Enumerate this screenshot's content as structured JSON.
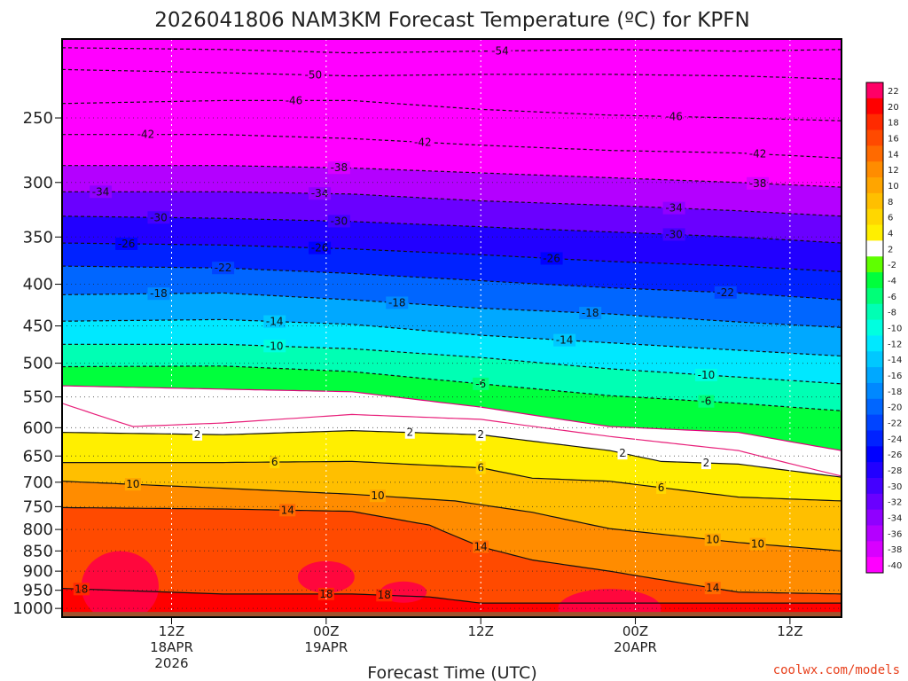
{
  "chart_data": {
    "type": "heatmap",
    "title": "2026041806 NAM3KM Forecast Temperature (ºC) for KPFN",
    "xlabel": "Forecast Time (UTC)",
    "ylabel": "",
    "y_units": "hPa",
    "y_scale": "log-pressure",
    "ylim": [
      1025,
      200
    ],
    "x_range_hours": [
      -2.5,
      58
    ],
    "x_ticks": [
      {
        "hour": 6,
        "lines": [
          "12Z",
          "18APR",
          "2026"
        ]
      },
      {
        "hour": 18,
        "lines": [
          "00Z",
          "19APR"
        ]
      },
      {
        "hour": 30,
        "lines": [
          "12Z"
        ]
      },
      {
        "hour": 42,
        "lines": [
          "00Z",
          "20APR"
        ]
      },
      {
        "hour": 54,
        "lines": [
          "12Z"
        ]
      }
    ],
    "y_ticks": [
      250,
      300,
      350,
      400,
      450,
      500,
      550,
      600,
      650,
      700,
      750,
      800,
      850,
      900,
      950,
      1000
    ],
    "colorbar": {
      "labels": [
        "22",
        "20",
        "18",
        "16",
        "14",
        "12",
        "10",
        "8",
        "6",
        "4",
        "2",
        "-2",
        "-4",
        "-6",
        "-8",
        "-10",
        "-12",
        "-14",
        "-16",
        "-18",
        "-20",
        "-22",
        "-24",
        "-26",
        "-28",
        "-30",
        "-32",
        "-34",
        "-36",
        "-38",
        "-40"
      ],
      "colors": [
        "#ff0066",
        "#ff0000",
        "#ff2a00",
        "#ff4a00",
        "#ff6a00",
        "#ff8c00",
        "#ffa500",
        "#ffbf00",
        "#ffd700",
        "#ffef00",
        "#ffffff",
        "#5fff00",
        "#00ff3c",
        "#00ff78",
        "#00ffb4",
        "#00ffe0",
        "#00e8ff",
        "#00c8ff",
        "#00a8ff",
        "#0088ff",
        "#0066ff",
        "#0044ff",
        "#0022ff",
        "#0000ff",
        "#2200ff",
        "#4400ff",
        "#6a00ff",
        "#9000ff",
        "#b400ff",
        "#d800ff",
        "#ff00ff"
      ]
    },
    "isotherms": [
      {
        "temp": -54,
        "points": [
          [
            -2.5,
            205
          ],
          [
            10,
            206
          ],
          [
            20,
            208
          ],
          [
            30,
            207
          ],
          [
            40,
            206
          ],
          [
            50,
            207
          ],
          [
            58,
            206
          ]
        ],
        "labels": [
          {
            "hour": 31.5,
            "text": "-54"
          }
        ]
      },
      {
        "temp": -50,
        "points": [
          [
            -2.5,
            218
          ],
          [
            10,
            220
          ],
          [
            20,
            222
          ],
          [
            30,
            221
          ],
          [
            40,
            221
          ],
          [
            50,
            222
          ],
          [
            58,
            224
          ]
        ],
        "labels": [
          {
            "hour": 17,
            "text": "-50"
          }
        ]
      },
      {
        "temp": -46,
        "points": [
          [
            -2.5,
            240
          ],
          [
            10,
            238
          ],
          [
            20,
            238
          ],
          [
            30,
            244
          ],
          [
            40,
            248
          ],
          [
            50,
            250
          ],
          [
            58,
            252
          ]
        ],
        "labels": [
          {
            "hour": 15.5,
            "text": "-46"
          },
          {
            "hour": 45,
            "text": "-46"
          }
        ]
      },
      {
        "temp": -42,
        "points": [
          [
            -2.5,
            262
          ],
          [
            10,
            262
          ],
          [
            20,
            265
          ],
          [
            30,
            270
          ],
          [
            40,
            274
          ],
          [
            50,
            276
          ],
          [
            58,
            280
          ]
        ],
        "labels": [
          {
            "hour": 4,
            "text": "-42"
          },
          {
            "hour": 25.5,
            "text": "-42"
          },
          {
            "hour": 51.5,
            "text": "-42"
          }
        ]
      },
      {
        "temp": -38,
        "points": [
          [
            -2.5,
            286
          ],
          [
            10,
            286
          ],
          [
            20,
            288
          ],
          [
            30,
            292
          ],
          [
            40,
            296
          ],
          [
            50,
            300
          ],
          [
            58,
            304
          ]
        ],
        "labels": [
          {
            "hour": 19,
            "text": "-38"
          },
          {
            "hour": 51.5,
            "text": "-38"
          }
        ]
      },
      {
        "temp": -34,
        "points": [
          [
            -2.5,
            308
          ],
          [
            10,
            308
          ],
          [
            20,
            310
          ],
          [
            30,
            316
          ],
          [
            40,
            320
          ],
          [
            50,
            325
          ],
          [
            58,
            330
          ]
        ],
        "labels": [
          {
            "hour": 0.5,
            "text": "-34"
          },
          {
            "hour": 17.5,
            "text": "-34"
          },
          {
            "hour": 45,
            "text": "-34"
          }
        ]
      },
      {
        "temp": -30,
        "points": [
          [
            -2.5,
            330
          ],
          [
            10,
            332
          ],
          [
            20,
            335
          ],
          [
            30,
            340
          ],
          [
            40,
            345
          ],
          [
            50,
            350
          ],
          [
            58,
            356
          ]
        ],
        "labels": [
          {
            "hour": 5,
            "text": "-30"
          },
          {
            "hour": 19,
            "text": "-30"
          },
          {
            "hour": 45,
            "text": "-30"
          }
        ]
      },
      {
        "temp": -26,
        "points": [
          [
            -2.5,
            356
          ],
          [
            10,
            358
          ],
          [
            20,
            362
          ],
          [
            30,
            368
          ],
          [
            40,
            375
          ],
          [
            50,
            380
          ],
          [
            58,
            386
          ]
        ],
        "labels": [
          {
            "hour": 2.5,
            "text": "-26"
          },
          {
            "hour": 17.5,
            "text": "-26"
          },
          {
            "hour": 35.5,
            "text": "-26"
          }
        ]
      },
      {
        "temp": -22,
        "points": [
          [
            -2.5,
            380
          ],
          [
            10,
            382
          ],
          [
            20,
            388
          ],
          [
            30,
            396
          ],
          [
            40,
            404
          ],
          [
            50,
            410
          ],
          [
            58,
            418
          ]
        ],
        "labels": [
          {
            "hour": 10,
            "text": "-22"
          },
          {
            "hour": 49,
            "text": "-22"
          }
        ]
      },
      {
        "temp": -18,
        "points": [
          [
            -2.5,
            412
          ],
          [
            10,
            410
          ],
          [
            20,
            418
          ],
          [
            30,
            428
          ],
          [
            40,
            435
          ],
          [
            50,
            445
          ],
          [
            58,
            452
          ]
        ],
        "labels": [
          {
            "hour": 5,
            "text": "-18"
          },
          {
            "hour": 23.5,
            "text": "-18"
          },
          {
            "hour": 38.5,
            "text": "-18"
          }
        ]
      },
      {
        "temp": -14,
        "points": [
          [
            -2.5,
            444
          ],
          [
            10,
            442
          ],
          [
            20,
            448
          ],
          [
            30,
            462
          ],
          [
            40,
            472
          ],
          [
            50,
            482
          ],
          [
            58,
            490
          ]
        ],
        "labels": [
          {
            "hour": 14,
            "text": "-14"
          },
          {
            "hour": 36.5,
            "text": "-14"
          }
        ]
      },
      {
        "temp": -10,
        "points": [
          [
            -2.5,
            474
          ],
          [
            10,
            474
          ],
          [
            20,
            480
          ],
          [
            30,
            492
          ],
          [
            40,
            508
          ],
          [
            50,
            520
          ],
          [
            58,
            530
          ]
        ],
        "labels": [
          {
            "hour": 14,
            "text": "-10"
          },
          {
            "hour": 47.5,
            "text": "-10"
          }
        ]
      },
      {
        "temp": -6,
        "points": [
          [
            -2.5,
            505
          ],
          [
            10,
            504
          ],
          [
            20,
            512
          ],
          [
            30,
            530
          ],
          [
            40,
            548
          ],
          [
            50,
            560
          ],
          [
            58,
            572
          ]
        ],
        "labels": [
          {
            "hour": 30,
            "text": "-6"
          },
          {
            "hour": 47.5,
            "text": "-6"
          }
        ]
      },
      {
        "temp": -2,
        "points": [
          [
            -2.5,
            533
          ],
          [
            10,
            538
          ],
          [
            20,
            542
          ],
          [
            30,
            566
          ],
          [
            40,
            598
          ],
          [
            50,
            608
          ],
          [
            58,
            640
          ]
        ],
        "labels": [],
        "style": "magenta"
      },
      {
        "temp": 0,
        "points": [
          [
            -2.5,
            560
          ],
          [
            3,
            598
          ],
          [
            10,
            592
          ],
          [
            20,
            578
          ],
          [
            30,
            586
          ],
          [
            40,
            615
          ],
          [
            50,
            640
          ],
          [
            58,
            688
          ]
        ],
        "labels": [],
        "style": "pink"
      },
      {
        "temp": 2,
        "points": [
          [
            -2.5,
            608
          ],
          [
            10,
            612
          ],
          [
            20,
            605
          ],
          [
            30,
            612
          ],
          [
            40,
            640
          ],
          [
            44,
            660
          ],
          [
            50,
            665
          ],
          [
            58,
            690
          ]
        ],
        "labels": [
          {
            "hour": 8,
            "text": "2"
          },
          {
            "hour": 24.5,
            "text": "2"
          },
          {
            "hour": 30,
            "text": "2"
          },
          {
            "hour": 41,
            "text": "2"
          },
          {
            "hour": 47.5,
            "text": "2"
          }
        ]
      },
      {
        "temp": 6,
        "points": [
          [
            -2.5,
            662
          ],
          [
            10,
            662
          ],
          [
            20,
            660
          ],
          [
            30,
            672
          ],
          [
            34,
            692
          ],
          [
            40,
            698
          ],
          [
            50,
            730
          ],
          [
            58,
            738
          ]
        ],
        "labels": [
          {
            "hour": 14,
            "text": "6"
          },
          {
            "hour": 30,
            "text": "6"
          },
          {
            "hour": 44,
            "text": "6"
          }
        ]
      },
      {
        "temp": 10,
        "points": [
          [
            -2.5,
            698
          ],
          [
            10,
            712
          ],
          [
            20,
            724
          ],
          [
            28,
            738
          ],
          [
            34,
            762
          ],
          [
            40,
            798
          ],
          [
            50,
            830
          ],
          [
            58,
            850
          ]
        ],
        "labels": [
          {
            "hour": 3,
            "text": "10"
          },
          {
            "hour": 22,
            "text": "10"
          },
          {
            "hour": 48,
            "text": "10"
          },
          {
            "hour": 51.5,
            "text": "10"
          }
        ]
      },
      {
        "temp": 14,
        "points": [
          [
            -2.5,
            752
          ],
          [
            10,
            755
          ],
          [
            20,
            760
          ],
          [
            26,
            790
          ],
          [
            30,
            840
          ],
          [
            34,
            872
          ],
          [
            40,
            900
          ],
          [
            50,
            955
          ],
          [
            58,
            960
          ]
        ],
        "labels": [
          {
            "hour": 15,
            "text": "14"
          },
          {
            "hour": 30,
            "text": "14"
          },
          {
            "hour": 48,
            "text": "14"
          }
        ]
      },
      {
        "temp": 18,
        "points": [
          [
            -2.5,
            945
          ],
          [
            10,
            960
          ],
          [
            20,
            960
          ],
          [
            26,
            968
          ],
          [
            30,
            985
          ]
        ],
        "labels": [
          {
            "hour": -1,
            "text": "18"
          },
          {
            "hour": 18,
            "text": "18"
          },
          {
            "hour": 22.5,
            "text": "18"
          }
        ]
      }
    ]
  },
  "credit": "coolwx.com/models"
}
